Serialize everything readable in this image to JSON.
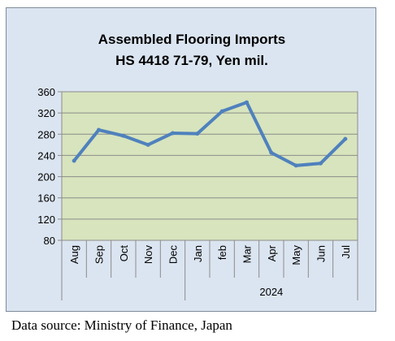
{
  "chart_data": {
    "type": "line",
    "title_line1": "Assembled Flooring Imports",
    "title_line2": "HS 4418 71-79, Yen mil.",
    "categories": [
      "Aug",
      "Sep",
      "Oct",
      "Nov",
      "Dec",
      "Jan",
      "feb",
      "Mar",
      "Apr",
      "May",
      "Jun",
      "Jul"
    ],
    "values": [
      230,
      288,
      277,
      260,
      282,
      281,
      323,
      340,
      245,
      221,
      225,
      271
    ],
    "group_label": "2024",
    "yticks": [
      "80",
      "120",
      "160",
      "200",
      "240",
      "280",
      "320",
      "360"
    ],
    "ylim": [
      80,
      360
    ],
    "grid": true,
    "line_color": "#4f81bd",
    "plot_bg": "#d7e4bd"
  },
  "source_note": "Data source: Ministry of Finance, Japan"
}
